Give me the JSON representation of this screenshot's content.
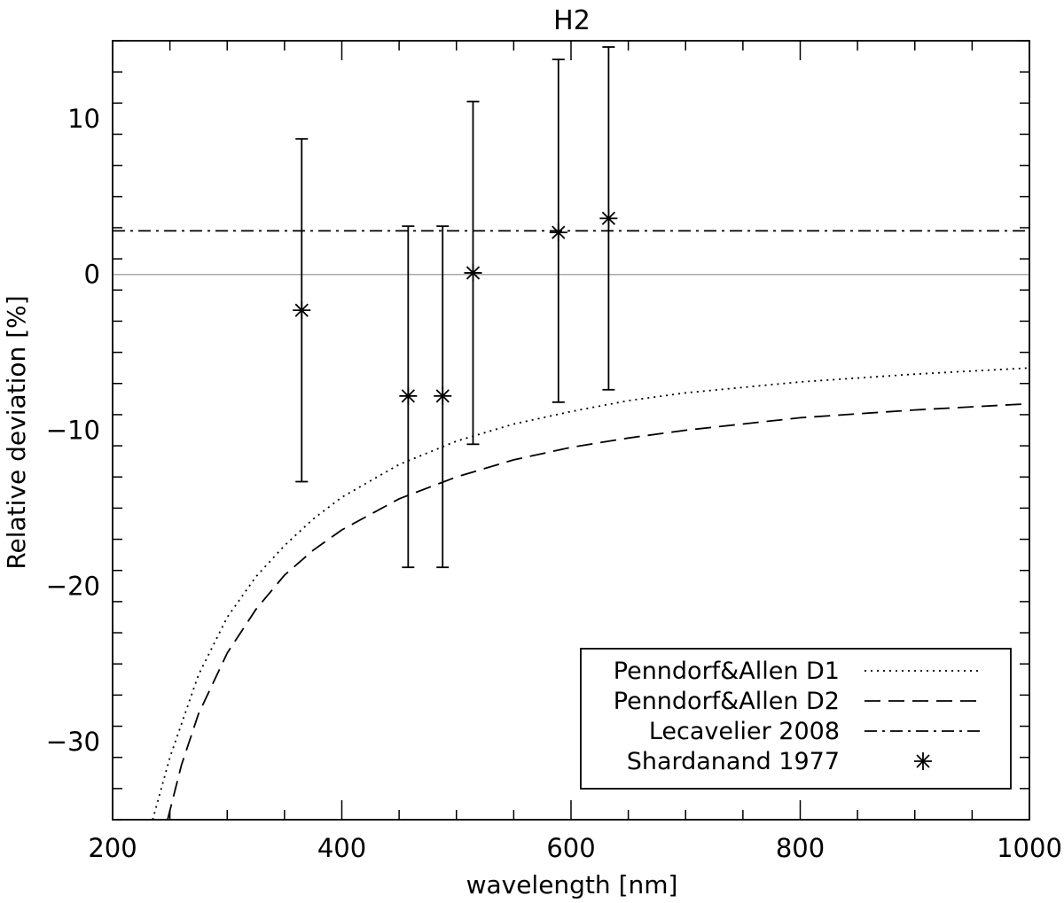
{
  "chart_data": {
    "type": "scatter",
    "title": "H2",
    "xlabel": "wavelength [nm]",
    "ylabel": "Relative deviation [%]",
    "xlim": [
      200,
      1000
    ],
    "ylim": [
      -35,
      15
    ],
    "xticks": [
      200,
      400,
      600,
      800,
      1000
    ],
    "xtick_labels": [
      "200",
      "400",
      "600",
      "800",
      "1000"
    ],
    "yticks": [
      -30,
      -20,
      -10,
      0,
      10
    ],
    "ytick_labels": [
      "−30",
      "−20",
      "−10",
      "0",
      "10"
    ],
    "x_minor_step": 50,
    "y_minor_step": 2,
    "reference_line_y": 0,
    "legend_position": "bottom-right",
    "series": [
      {
        "name": "Penndorf&Allen D1",
        "style": "dotted",
        "x": [
          235,
          250,
          275,
          300,
          325,
          350,
          375,
          400,
          450,
          500,
          550,
          600,
          650,
          700,
          800,
          900,
          1000
        ],
        "y": [
          -35,
          -31.0,
          -25.7,
          -22.0,
          -19.4,
          -17.4,
          -15.7,
          -14.3,
          -12.2,
          -10.7,
          -9.6,
          -8.8,
          -8.1,
          -7.6,
          -6.9,
          -6.4,
          -6.0
        ]
      },
      {
        "name": "Penndorf&Allen D2",
        "style": "dashed",
        "x": [
          248,
          260,
          275,
          300,
          325,
          350,
          375,
          400,
          450,
          500,
          550,
          600,
          650,
          700,
          800,
          900,
          1000
        ],
        "y": [
          -35,
          -31.5,
          -28.2,
          -24.3,
          -21.5,
          -19.3,
          -17.7,
          -16.4,
          -14.4,
          -13.0,
          -11.9,
          -11.1,
          -10.5,
          -10.0,
          -9.2,
          -8.7,
          -8.3
        ]
      },
      {
        "name": "Lecavelier 2008",
        "style": "dash-dot",
        "x": [
          200,
          1000
        ],
        "y": [
          2.8,
          2.8
        ]
      },
      {
        "name": "Shardanand 1977",
        "style": "asterisk-errorbars",
        "x": [
          365.0,
          457.9,
          488.0,
          514.5,
          589.0,
          632.8
        ],
        "y": [
          -2.3,
          -7.8,
          -7.8,
          0.1,
          2.7,
          3.6
        ],
        "err_low": [
          -13.3,
          -18.8,
          -18.8,
          -10.9,
          -8.2,
          -7.4
        ],
        "err_high": [
          8.7,
          3.1,
          3.1,
          11.1,
          13.8,
          14.6
        ]
      }
    ]
  }
}
